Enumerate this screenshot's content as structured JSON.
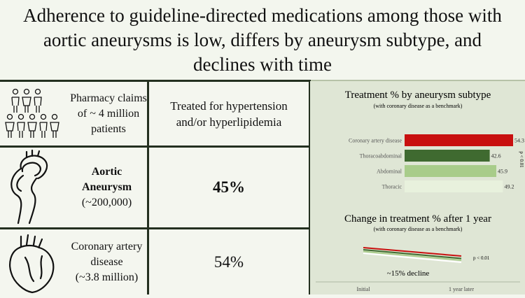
{
  "title": "Adherence to guideline-directed medications among those with aortic aneurysms is low, differs by aneurysm subtype, and declines with time",
  "table": {
    "header_left": "Pharmacy claims of ~ 4 million patients",
    "header_right": "Treated for hypertension and/or hyperlipidemia",
    "rows": [
      {
        "label_line1": "Aortic",
        "label_line2": "Aneurysm",
        "label_sub": "(~200,000)",
        "value": "45%"
      },
      {
        "label_line1": "Coronary artery",
        "label_line2": "disease",
        "label_sub": "(~3.8 million)",
        "value": "54%"
      }
    ]
  },
  "icons": {
    "people": "people-group-icon",
    "aorta": "aorta-icon",
    "heart": "heart-icon"
  },
  "chart_data": [
    {
      "type": "bar",
      "orientation": "horizontal",
      "title": "Treatment % by aneurysm subtype",
      "subtitle": "(with coronary disease as a benchmark)",
      "categories": [
        "Coronary artery disease",
        "Thoracoabdominal",
        "Abdominal",
        "Thoracic"
      ],
      "values": [
        54.3,
        42.6,
        45.9,
        49.2
      ],
      "colors": [
        "#c8100f",
        "#3f6a30",
        "#a8cc8a",
        "#e8f1dd"
      ],
      "annotation": "p < 0.01"
    },
    {
      "type": "line",
      "title": "Change in treatment % after 1 year",
      "subtitle": "(with coronary disease as a benchmark)",
      "categories": [
        "Initial",
        "1 year later"
      ],
      "series": [
        {
          "color": "#c8100f"
        },
        {
          "color": "#3f6a30"
        },
        {
          "color": "#a8cc8a"
        },
        {
          "color": "#ffffff"
        }
      ],
      "annotation": "p < 0.01",
      "note": "~15% decline"
    }
  ]
}
